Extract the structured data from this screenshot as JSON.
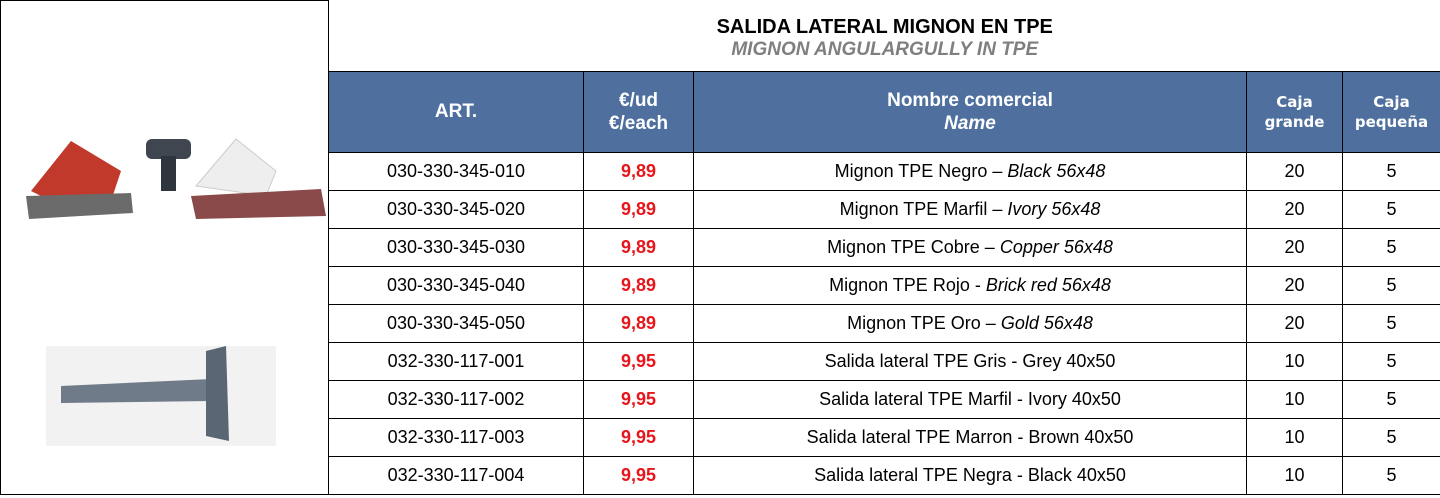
{
  "header": {
    "title": "SALIDA LATERAL MIGNON EN TPE",
    "subtitle": "MIGNON ANGULARGULLY IN TPE"
  },
  "table": {
    "columns": [
      {
        "lines": [
          "ART."
        ]
      },
      {
        "lines": [
          "€/ud",
          "€/each"
        ]
      },
      {
        "lines": [
          "Nombre comercial"
        ],
        "italic_line": "Name"
      },
      {
        "lines": [
          "Caja",
          "grande"
        ]
      },
      {
        "lines": [
          "Caja",
          "pequeña"
        ]
      }
    ],
    "rows": [
      {
        "art": "030-330-345-010",
        "price": "9,89",
        "name": "Mignon TPE Negro –",
        "name_italic": "Black 56x48",
        "large": "20",
        "small": "5"
      },
      {
        "art": "030-330-345-020",
        "price": "9,89",
        "name": "Mignon TPE Marfil –",
        "name_italic": "Ivory 56x48",
        "large": "20",
        "small": "5"
      },
      {
        "art": "030-330-345-030",
        "price": "9,89",
        "name": "Mignon TPE Cobre –",
        "name_italic": "Copper 56x48",
        "large": "20",
        "small": "5"
      },
      {
        "art": "030-330-345-040",
        "price": "9,89",
        "name": "Mignon TPE Rojo -",
        "name_italic": "Brick red 56x48",
        "large": "20",
        "small": "5"
      },
      {
        "art": "030-330-345-050",
        "price": "9,89",
        "name": "Mignon TPE Oro –",
        "name_italic": "Gold 56x48",
        "large": "20",
        "small": "5"
      },
      {
        "art": "032-330-117-001",
        "price": "9,95",
        "name": "Salida lateral TPE  Gris - Grey 40x50",
        "large": "10",
        "small": "5"
      },
      {
        "art": "032-330-117-002",
        "price": "9,95",
        "name": "Salida lateral TPE Marfil - Ivory 40x50",
        "large": "10",
        "small": "5"
      },
      {
        "art": "032-330-117-003",
        "price": "9,95",
        "name": "Salida lateral TPE Marron - Brown 40x50",
        "large": "10",
        "small": "5"
      },
      {
        "art": "032-330-117-004",
        "price": "9,95",
        "name": "Salida lateral TPE Negra - Black 40x50",
        "large": "10",
        "small": "5"
      }
    ]
  }
}
